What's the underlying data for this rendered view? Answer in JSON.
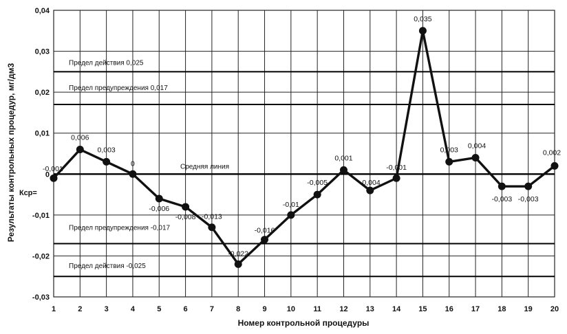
{
  "chart_data": {
    "type": "line",
    "xlabel": "Номер контрольной процедуры",
    "ylabel": "Результаты контрольных процедур, мг/дм3",
    "ylim": [
      -0.03,
      0.04
    ],
    "xlim": [
      1,
      20
    ],
    "grid": true,
    "x": [
      1,
      2,
      3,
      4,
      5,
      6,
      7,
      8,
      9,
      10,
      11,
      12,
      13,
      14,
      15,
      16,
      17,
      18,
      19,
      20
    ],
    "values": [
      -0.001,
      0.006,
      0.003,
      0,
      -0.006,
      -0.008,
      -0.013,
      -0.022,
      -0.016,
      -0.01,
      -0.005,
      0.001,
      -0.004,
      -0.001,
      0.035,
      0.003,
      0.004,
      -0.003,
      -0.003,
      0.002
    ],
    "data_labels": [
      "-0,001",
      "0,006",
      "0,003",
      "0",
      "-0,006",
      "-0,008",
      "-0,013",
      "-0,022",
      "-0,016",
      "-0,01",
      "-0,005",
      "0,001",
      "-0,004",
      "-0,001",
      "0,035",
      "0,003",
      "0,004",
      "-0,003",
      "-0,003",
      "0,002"
    ],
    "x_ticks": [
      "1",
      "2",
      "3",
      "4",
      "5",
      "6",
      "7",
      "8",
      "9",
      "10",
      "11",
      "12",
      "13",
      "14",
      "15",
      "16",
      "17",
      "18",
      "19",
      "20"
    ],
    "y_ticks": [
      {
        "value": 0.04,
        "label": "0,04"
      },
      {
        "value": 0.03,
        "label": "0,03"
      },
      {
        "value": 0.02,
        "label": "0,02"
      },
      {
        "value": 0.01,
        "label": "0,01"
      },
      {
        "value": 0,
        "label": "0"
      },
      {
        "value": -0.01,
        "label": "-0,01"
      },
      {
        "value": -0.02,
        "label": "-0,02"
      },
      {
        "value": -0.03,
        "label": "-0,03"
      }
    ],
    "reference_lines": [
      {
        "name": "action-upper",
        "value": 0.025,
        "label": "Предел действия 0,025"
      },
      {
        "name": "warning-upper",
        "value": 0.017,
        "label": "Предел предупреждения 0,017"
      },
      {
        "name": "center",
        "value": 0,
        "label": "Средняя линия"
      },
      {
        "name": "warning-lower",
        "value": -0.017,
        "label": "Предел предупреждения -0,017"
      },
      {
        "name": "action-lower",
        "value": -0.025,
        "label": "Предел действия -0,025"
      }
    ],
    "k_label": "Кср=",
    "colors": {
      "line": "#111111",
      "grid": "#222222"
    }
  }
}
